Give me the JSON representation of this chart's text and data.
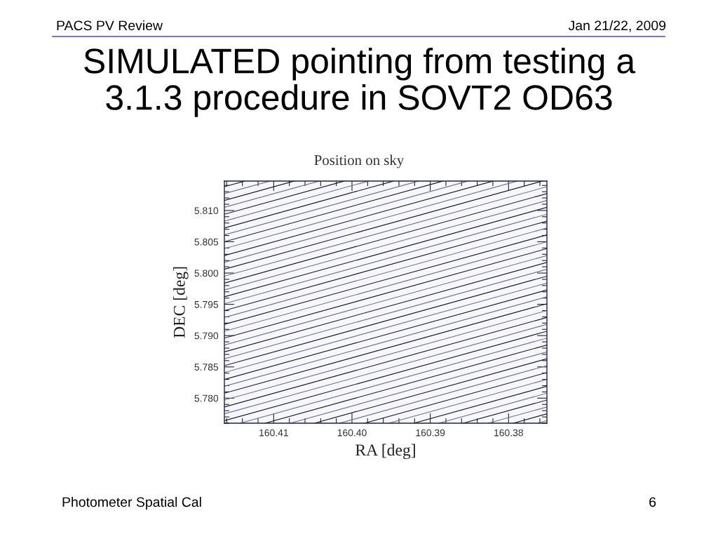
{
  "chart_data": {
    "type": "line",
    "title": "SIMULATED pointing from testing a\n3.1.3 procedure in SOVT2 OD63",
    "subtitle": "Position on sky",
    "xlabel": "RA [deg]",
    "ylabel": "DEC [deg]",
    "annotations": [
      "PACS PV Review",
      "Jan 21/22, 2009",
      "Photometer Spatial Cal",
      "6"
    ],
    "xlim": [
      160.4163,
      160.3751
    ],
    "ylim": [
      5.776,
      5.8147
    ],
    "xticks": [
      {
        "value": 160.416,
        "label": null
      },
      {
        "value": 160.414,
        "label": null
      },
      {
        "value": 160.412,
        "label": null
      },
      160.41,
      {
        "value": 160.408,
        "label": null
      },
      {
        "value": 160.406,
        "label": null
      },
      {
        "value": 160.404,
        "label": null
      },
      {
        "value": 160.402,
        "label": null
      },
      {
        "value": 160.4,
        "label": "160.40"
      },
      {
        "value": 160.398,
        "label": null
      },
      {
        "value": 160.396,
        "label": null
      },
      {
        "value": 160.394,
        "label": null
      },
      {
        "value": 160.392,
        "label": null
      },
      160.39,
      {
        "value": 160.388,
        "label": null
      },
      {
        "value": 160.386,
        "label": null
      },
      {
        "value": 160.384,
        "label": null
      },
      {
        "value": 160.382,
        "label": null
      },
      160.38,
      {
        "value": 160.378,
        "label": null
      },
      {
        "value": 160.376,
        "label": null
      }
    ],
    "yticks": [
      {
        "value": 5.776,
        "label": null
      },
      {
        "value": 5.777,
        "label": null
      },
      {
        "value": 5.778,
        "label": null
      },
      {
        "value": 5.779,
        "label": null
      },
      {
        "value": 5.78,
        "label": "5.780"
      },
      {
        "value": 5.781,
        "label": null
      },
      {
        "value": 5.782,
        "label": null
      },
      {
        "value": 5.783,
        "label": null
      },
      {
        "value": 5.784,
        "label": null
      },
      5.785,
      {
        "value": 5.786,
        "label": null
      },
      {
        "value": 5.787,
        "label": null
      },
      {
        "value": 5.788,
        "label": null
      },
      {
        "value": 5.789,
        "label": null
      },
      {
        "value": 5.79,
        "label": "5.790"
      },
      {
        "value": 5.791,
        "label": null
      },
      {
        "value": 5.792,
        "label": null
      },
      {
        "value": 5.793,
        "label": null
      },
      {
        "value": 5.794,
        "label": null
      },
      5.795,
      {
        "value": 5.796,
        "label": null
      },
      {
        "value": 5.797,
        "label": null
      },
      {
        "value": 5.798,
        "label": null
      },
      {
        "value": 5.799,
        "label": null
      },
      {
        "value": 5.8,
        "label": "5.800"
      },
      {
        "value": 5.801,
        "label": null
      },
      {
        "value": 5.802,
        "label": null
      },
      {
        "value": 5.803,
        "label": null
      },
      {
        "value": 5.804,
        "label": null
      },
      5.805,
      {
        "value": 5.806,
        "label": null
      },
      {
        "value": 5.807,
        "label": null
      },
      {
        "value": 5.808,
        "label": null
      },
      {
        "value": 5.809,
        "label": null
      },
      {
        "value": 5.81,
        "label": "5.810"
      },
      {
        "value": 5.811,
        "label": null
      },
      {
        "value": 5.812,
        "label": null
      },
      {
        "value": 5.813,
        "label": null
      },
      {
        "value": 5.814,
        "label": null
      }
    ],
    "series": [
      {
        "color": "#14142e",
        "x": [
          160.4163,
          160.4137
        ],
        "values": [
          5.8138,
          5.8147
        ]
      },
      {
        "color": "#6e6e9a",
        "x": [
          160.4163,
          160.4105
        ],
        "values": [
          5.8127,
          5.8147
        ]
      },
      {
        "color": "#14142e",
        "x": [
          160.4163,
          160.4074
        ],
        "values": [
          5.8116,
          5.8147
        ]
      },
      {
        "color": "#6e6e9a",
        "x": [
          160.4163,
          160.4042
        ],
        "values": [
          5.8105,
          5.8147
        ]
      },
      {
        "color": "#14142e",
        "x": [
          160.4163,
          160.401
        ],
        "values": [
          5.8094,
          5.8147
        ]
      },
      {
        "color": "#6e6e9a",
        "x": [
          160.4163,
          160.3979
        ],
        "values": [
          5.8083,
          5.8147
        ]
      },
      {
        "color": "#14142e",
        "x": [
          160.4163,
          160.3947
        ],
        "values": [
          5.8072,
          5.8147
        ]
      },
      {
        "color": "#6e6e9a",
        "x": [
          160.4163,
          160.3915
        ],
        "values": [
          5.8061,
          5.8147
        ]
      },
      {
        "color": "#14142e",
        "x": [
          160.4163,
          160.3884
        ],
        "values": [
          5.805,
          5.8147
        ]
      },
      {
        "color": "#6e6e9a",
        "x": [
          160.4163,
          160.3852
        ],
        "values": [
          5.8039,
          5.8147
        ]
      },
      {
        "color": "#14142e",
        "x": [
          160.4163,
          160.382
        ],
        "values": [
          5.8028,
          5.8147
        ]
      },
      {
        "color": "#6e6e9a",
        "x": [
          160.4163,
          160.3789
        ],
        "values": [
          5.8017,
          5.8147
        ]
      },
      {
        "color": "#14142e",
        "x": [
          160.4163,
          160.3757
        ],
        "values": [
          5.8006,
          5.8147
        ]
      },
      {
        "color": "#6e6e9a",
        "x": [
          160.4163,
          160.3751
        ],
        "values": [
          5.7995,
          5.8138
        ]
      },
      {
        "color": "#14142e",
        "x": [
          160.4163,
          160.3751
        ],
        "values": [
          5.7984,
          5.8127
        ]
      },
      {
        "color": "#6e6e9a",
        "x": [
          160.4163,
          160.3751
        ],
        "values": [
          5.7973,
          5.8116
        ]
      },
      {
        "color": "#14142e",
        "x": [
          160.4163,
          160.3751
        ],
        "values": [
          5.7962,
          5.8105
        ]
      },
      {
        "color": "#6e6e9a",
        "x": [
          160.4163,
          160.3751
        ],
        "values": [
          5.7951,
          5.8094
        ]
      },
      {
        "color": "#14142e",
        "x": [
          160.4163,
          160.3751
        ],
        "values": [
          5.794,
          5.8083
        ]
      },
      {
        "color": "#6e6e9a",
        "x": [
          160.4163,
          160.3751
        ],
        "values": [
          5.7929,
          5.8072
        ]
      },
      {
        "color": "#14142e",
        "x": [
          160.4163,
          160.3751
        ],
        "values": [
          5.7918,
          5.8061
        ]
      },
      {
        "color": "#6e6e9a",
        "x": [
          160.4163,
          160.3751
        ],
        "values": [
          5.7907,
          5.805
        ]
      },
      {
        "color": "#14142e",
        "x": [
          160.4163,
          160.3751
        ],
        "values": [
          5.7896,
          5.8039
        ]
      },
      {
        "color": "#6e6e9a",
        "x": [
          160.4163,
          160.3751
        ],
        "values": [
          5.7885,
          5.8028
        ]
      },
      {
        "color": "#14142e",
        "x": [
          160.4163,
          160.3751
        ],
        "values": [
          5.7874,
          5.8017
        ]
      },
      {
        "color": "#6e6e9a",
        "x": [
          160.4163,
          160.3751
        ],
        "values": [
          5.7863,
          5.8006
        ]
      },
      {
        "color": "#14142e",
        "x": [
          160.4163,
          160.3751
        ],
        "values": [
          5.7852,
          5.7995
        ]
      },
      {
        "color": "#6e6e9a",
        "x": [
          160.4163,
          160.3751
        ],
        "values": [
          5.7841,
          5.7984
        ]
      },
      {
        "color": "#14142e",
        "x": [
          160.4163,
          160.3751
        ],
        "values": [
          5.783,
          5.7973
        ]
      },
      {
        "color": "#6e6e9a",
        "x": [
          160.4163,
          160.3751
        ],
        "values": [
          5.7819,
          5.7962
        ]
      },
      {
        "color": "#14142e",
        "x": [
          160.4163,
          160.3751
        ],
        "values": [
          5.7808,
          5.7951
        ]
      },
      {
        "color": "#6e6e9a",
        "x": [
          160.4163,
          160.3751
        ],
        "values": [
          5.7797,
          5.794
        ]
      },
      {
        "color": "#14142e",
        "x": [
          160.4163,
          160.3751
        ],
        "values": [
          5.7786,
          5.7929
        ]
      },
      {
        "color": "#6e6e9a",
        "x": [
          160.4163,
          160.3751
        ],
        "values": [
          5.7775,
          5.7918
        ]
      },
      {
        "color": "#14142e",
        "x": [
          160.4163,
          160.3751
        ],
        "values": [
          5.7764,
          5.7907
        ]
      },
      {
        "color": "#6e6e9a",
        "x": [
          160.4143,
          160.3751
        ],
        "values": [
          5.776,
          5.7896
        ]
      },
      {
        "color": "#14142e",
        "x": [
          160.4111,
          160.3751
        ],
        "values": [
          5.776,
          5.7885
        ]
      },
      {
        "color": "#6e6e9a",
        "x": [
          160.4079,
          160.3751
        ],
        "values": [
          5.776,
          5.7874
        ]
      },
      {
        "color": "#14142e",
        "x": [
          160.4048,
          160.3751
        ],
        "values": [
          5.776,
          5.7863
        ]
      },
      {
        "color": "#6e6e9a",
        "x": [
          160.4016,
          160.3751
        ],
        "values": [
          5.776,
          5.7852
        ]
      },
      {
        "color": "#14142e",
        "x": [
          160.3984,
          160.3751
        ],
        "values": [
          5.776,
          5.7841
        ]
      },
      {
        "color": "#6e6e9a",
        "x": [
          160.3953,
          160.3751
        ],
        "values": [
          5.776,
          5.783
        ]
      },
      {
        "color": "#14142e",
        "x": [
          160.3921,
          160.3751
        ],
        "values": [
          5.776,
          5.7819
        ]
      },
      {
        "color": "#6e6e9a",
        "x": [
          160.3889,
          160.3751
        ],
        "values": [
          5.776,
          5.7808
        ]
      },
      {
        "color": "#14142e",
        "x": [
          160.3858,
          160.3751
        ],
        "values": [
          5.776,
          5.7797
        ]
      },
      {
        "color": "#6e6e9a",
        "x": [
          160.3826,
          160.3751
        ],
        "values": [
          5.776,
          5.7786
        ]
      },
      {
        "color": "#14142e",
        "x": [
          160.3794,
          160.3751
        ],
        "values": [
          5.776,
          5.7775
        ]
      },
      {
        "color": "#6e6e9a",
        "x": [
          160.3763,
          160.3751
        ],
        "values": [
          5.776,
          5.7764
        ]
      }
    ]
  }
}
